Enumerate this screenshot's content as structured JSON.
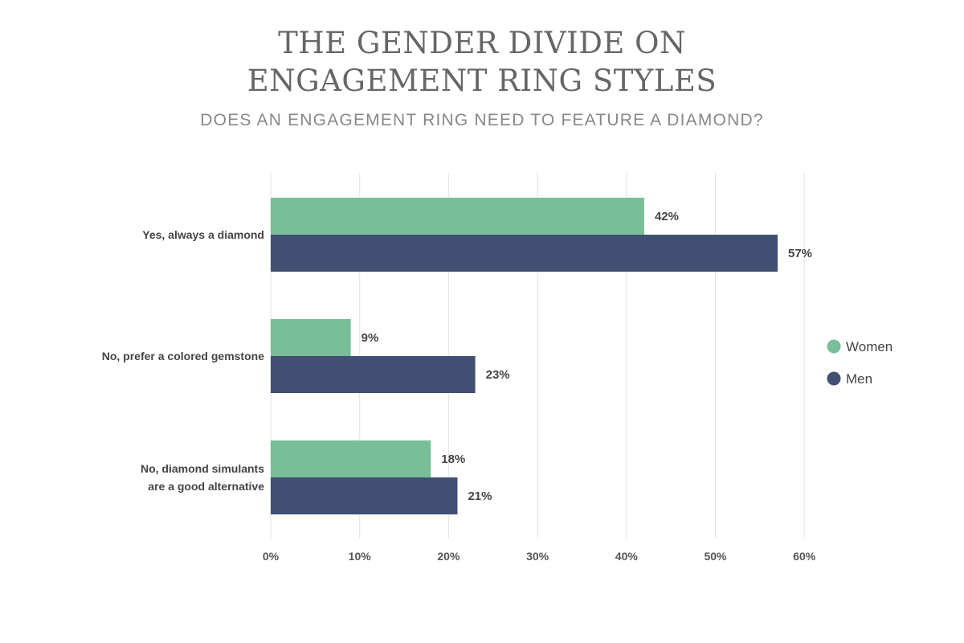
{
  "chart_data": {
    "type": "bar",
    "orientation": "horizontal",
    "title_lines": [
      "THE GENDER DIVIDE ON",
      "ENGAGEMENT RING STYLES"
    ],
    "subtitle": "DOES AN ENGAGEMENT RING NEED TO FEATURE A DIAMOND?",
    "categories": [
      [
        "Yes, always a diamond"
      ],
      [
        "No, prefer a colored gemstone"
      ],
      [
        "No, diamond simulants",
        "are a good alternative"
      ]
    ],
    "series": [
      {
        "name": "Women",
        "color": "#78be98",
        "values": [
          42,
          9,
          18
        ],
        "labels": [
          "42%",
          "9%",
          "18%"
        ]
      },
      {
        "name": "Men",
        "color": "#404f72",
        "values": [
          57,
          23,
          21
        ],
        "labels": [
          "57%",
          "23%",
          "21%"
        ]
      }
    ],
    "xlim": [
      0,
      60
    ],
    "xticks": [
      0,
      10,
      20,
      30,
      40,
      50,
      60
    ],
    "xtick_labels": [
      "0%",
      "10%",
      "20%",
      "30%",
      "40%",
      "50%",
      "60%"
    ],
    "grid": true,
    "legend_position": "right"
  }
}
